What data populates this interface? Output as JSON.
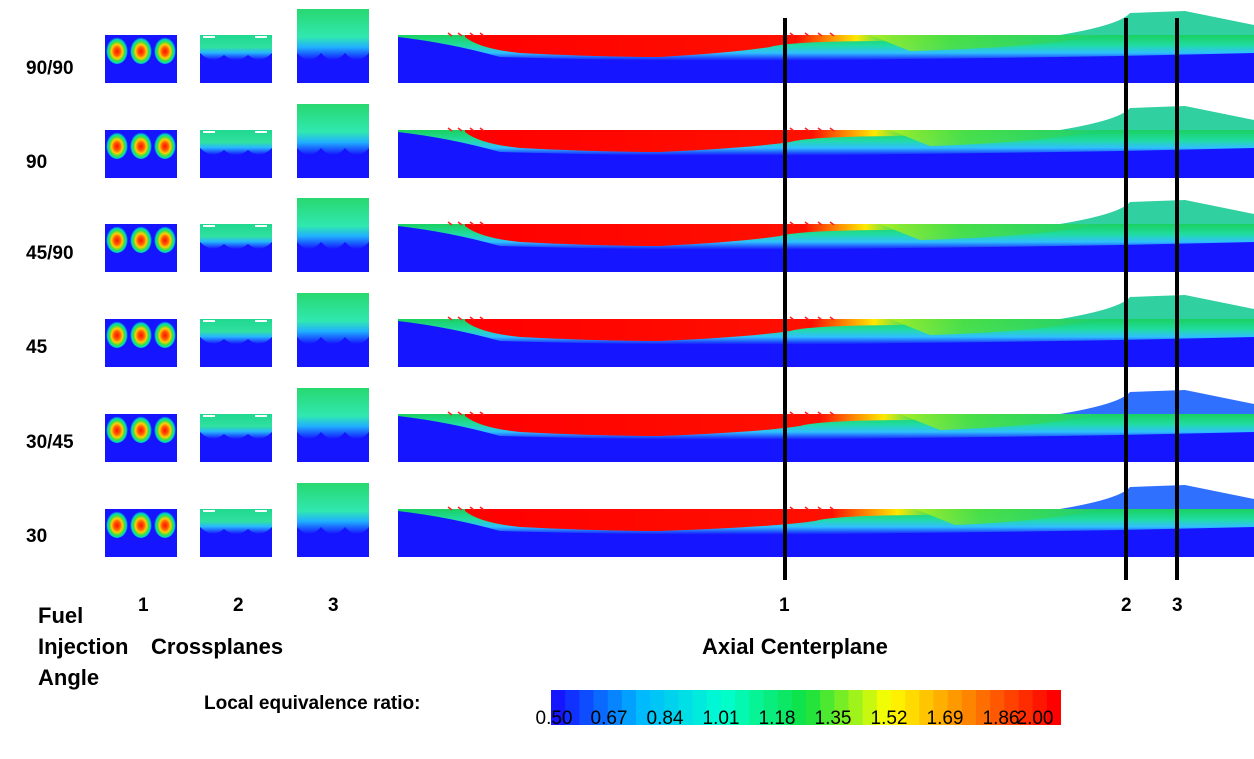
{
  "rows": [
    {
      "label": "90/90"
    },
    {
      "label": "90"
    },
    {
      "label": "45/90"
    },
    {
      "label": "45"
    },
    {
      "label": "30/45"
    },
    {
      "label": "30"
    }
  ],
  "crossplane_numbers": [
    "1",
    "2",
    "3"
  ],
  "axial_numbers": [
    "1",
    "2",
    "3"
  ],
  "axis_title_lines": [
    "Fuel",
    "Injection",
    "Angle"
  ],
  "crossplanes_title": "Crossplanes",
  "axial_title": "Axial Centerplane",
  "colorbar": {
    "label": "Local equivalence ratio:",
    "ticks": [
      "0.50",
      "0.67",
      "0.84",
      "1.01",
      "1.18",
      "1.35",
      "1.52",
      "1.69",
      "1.86",
      "2.00"
    ],
    "colors": [
      "#1515ff",
      "#00b8ff",
      "#00ffd0",
      "#10e040",
      "#ffff00",
      "#ff8000",
      "#ff0000"
    ]
  }
}
